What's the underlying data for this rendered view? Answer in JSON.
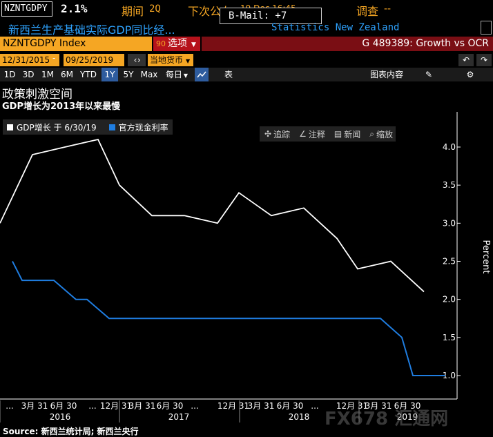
{
  "header": {
    "ticker": "NZNTGDPY",
    "value": "2.1%",
    "period_label": "期间",
    "period_value": "2Q",
    "next_release_label": "下次公布",
    "next_release_date": "19 Dec 16:45",
    "bmail": "B-Mail: +7",
    "survey_label": "调查",
    "survey_value": "--",
    "description": "新西兰生产基础实际GDP同比经...",
    "source": "Statistics New Zealand"
  },
  "index_bar": {
    "label": "NZNTGDPY Index",
    "options_num": "90",
    "options_label": "选项",
    "chart_title": "G 489389: Growth vs OCR"
  },
  "date_row": {
    "start": "12/31/2015",
    "end": "09/25/2019",
    "currency": "当地货币",
    "undo": "↶",
    "redo": "↷"
  },
  "toolbar": {
    "ranges": [
      "1D",
      "3D",
      "1M",
      "6M",
      "YTD",
      "1Y",
      "5Y",
      "Max"
    ],
    "active_range": "1Y",
    "frequency": "每日",
    "table": "表",
    "related": "图表内容"
  },
  "chart_heading": "政策刺激空间",
  "chart_subheading": "GDP增长为2013年以来最慢",
  "legend": [
    {
      "label": "GDP增长 于 6/30/19",
      "color": "#ffffff"
    },
    {
      "label": "官方现金利率",
      "color": "#1f7de0"
    }
  ],
  "chart_tools": [
    "追踪",
    "注释",
    "新闻",
    "缩放"
  ],
  "chart_data": {
    "type": "line",
    "ylabel": "Percent",
    "ylim": [
      0.8,
      4.25
    ],
    "y_ticks": [
      1.0,
      1.5,
      2.0,
      2.5,
      3.0,
      3.5,
      4.0
    ],
    "x_tick_labels": [
      "...",
      "3月 31",
      "6月 30",
      "...",
      "12月 31",
      "3月 31",
      "6月 30",
      "...",
      "12月 31",
      "3月 31",
      "6月 30",
      "...",
      "12月 31",
      "3月 31",
      "6月 30"
    ],
    "years": [
      "2016",
      "2017",
      "2018",
      "2019"
    ],
    "series": [
      {
        "name": "GDP增长 于 6/30/19",
        "color": "#ffffff",
        "x": [
          "2015-12-31",
          "2016-03-31",
          "2016-06-30",
          "2016-09-30",
          "2016-12-31",
          "2017-03-31",
          "2017-06-30",
          "2017-09-30",
          "2017-12-31",
          "2018-03-31",
          "2018-06-30",
          "2018-09-30",
          "2018-12-31",
          "2019-03-31",
          "2019-06-30"
        ],
        "values": [
          3.0,
          3.9,
          4.0,
          4.1,
          3.5,
          3.1,
          3.1,
          3.0,
          3.4,
          3.1,
          3.2,
          2.8,
          2.4,
          2.5,
          2.1
        ]
      },
      {
        "name": "官方现金利率",
        "color": "#1f7de0",
        "x": [
          "2016-01-15",
          "2016-02-01",
          "2016-03-10",
          "2016-05-01",
          "2016-08-11",
          "2016-10-01",
          "2016-11-10",
          "2017-12-31",
          "2019-05-08",
          "2019-06-30",
          "2019-08-07",
          "2019-09-25"
        ],
        "values": [
          2.5,
          2.25,
          2.25,
          2.25,
          2.0,
          2.0,
          1.75,
          1.75,
          1.75,
          1.5,
          1.0,
          1.0
        ]
      }
    ]
  },
  "source_line": "Source: 新西兰统计局; 新西兰央行",
  "watermark": "FX678 汇通网"
}
